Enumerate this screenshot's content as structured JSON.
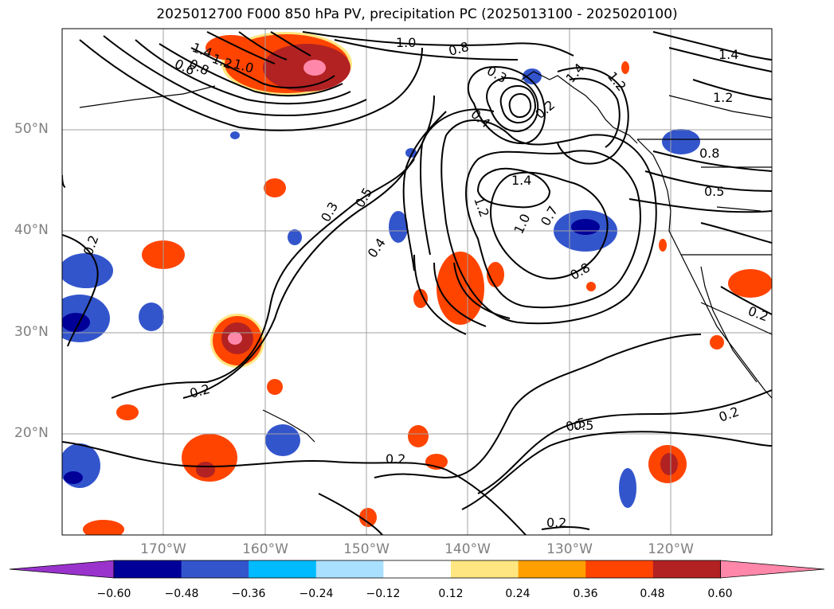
{
  "title": "2025012700 F000 850 hPa PV, precipitation PC (2025013100 - 2025020100)",
  "map": {
    "lat_labels": [
      "50°N",
      "40°N",
      "30°N",
      "20°N"
    ],
    "lon_labels": [
      "170°W",
      "160°W",
      "150°W",
      "140°W",
      "130°W",
      "120°W"
    ],
    "extent": {
      "lon_min": -180,
      "lon_max": -110,
      "lat_min": 10,
      "lat_max": 60
    },
    "contour_labels": [
      "1.4",
      "1.2",
      "1.0",
      "0.8",
      "0.6",
      "1.0",
      "0.8",
      "0.3",
      "0.4",
      "0.2",
      "1.4",
      "1.2",
      "1.4",
      "0.5",
      "0.3",
      "0.4",
      "0.5",
      "1.4",
      "1.2",
      "1.0",
      "0.7",
      "0.8",
      "1.2",
      "0.8",
      "0.5",
      "0.2",
      "0.2",
      "0.2",
      "0.5",
      "0.2",
      "0.2",
      "0.2"
    ]
  },
  "colorbar": {
    "ticks": [
      "−0.60",
      "−0.48",
      "−0.36",
      "−0.24",
      "−0.12",
      "0.12",
      "0.24",
      "0.36",
      "0.48",
      "0.60"
    ],
    "colors": [
      "#9933cc",
      "#000099",
      "#3355cc",
      "#00bbff",
      "#aae0ff",
      "#ffffff",
      "#ffe680",
      "#ffa000",
      "#ff4400",
      "#b22222",
      "#ff88aa"
    ]
  }
}
